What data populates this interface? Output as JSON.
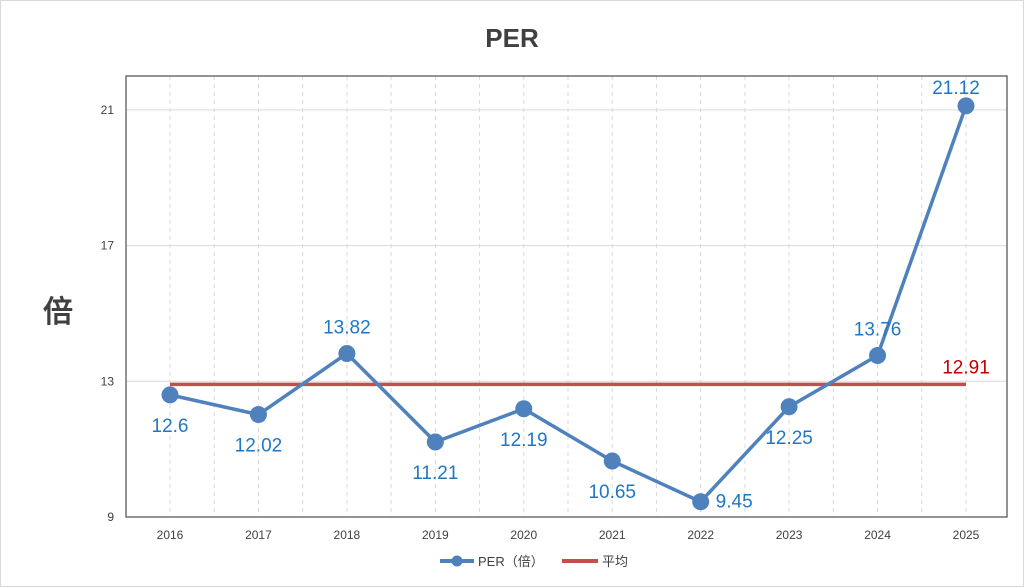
{
  "chart_data": {
    "type": "line",
    "title": "PER",
    "xlabel": "",
    "ylabel": "倍",
    "categories": [
      "2016",
      "2017",
      "2018",
      "2019",
      "2020",
      "2021",
      "2022",
      "2023",
      "2024",
      "2025"
    ],
    "series": [
      {
        "name": "PER（倍）",
        "values": [
          12.6,
          12.02,
          13.82,
          11.21,
          12.19,
          10.65,
          9.45,
          12.25,
          13.76,
          21.12
        ],
        "labels": [
          "12.6",
          "12.02",
          "13.82",
          "11.21",
          "12.19",
          "10.65",
          "9.45",
          "12.25",
          "13.76",
          "21.12"
        ],
        "color": "#4f81bd",
        "label_color": "#1f77c4"
      },
      {
        "name": "平均",
        "value": 12.91,
        "label": "12.91",
        "color": "#c0504d",
        "label_color": "#c00000"
      }
    ],
    "ylim": [
      9,
      22
    ],
    "yticks": [
      "9",
      "13",
      "17",
      "21"
    ],
    "grid": "on",
    "legend": "bottom"
  }
}
